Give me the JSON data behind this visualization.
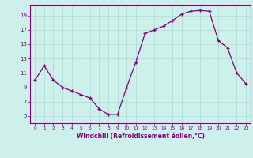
{
  "x": [
    0,
    1,
    2,
    3,
    4,
    5,
    6,
    7,
    8,
    9,
    10,
    11,
    12,
    13,
    14,
    15,
    16,
    17,
    18,
    19,
    20,
    21,
    22,
    23
  ],
  "y": [
    10.0,
    12.0,
    10.0,
    9.0,
    8.5,
    8.0,
    7.5,
    6.0,
    5.2,
    5.2,
    9.0,
    12.5,
    16.5,
    17.0,
    17.5,
    18.3,
    19.2,
    19.6,
    19.7,
    19.6,
    15.5,
    14.5,
    11.0,
    9.5
  ],
  "xlabel": "Windchill (Refroidissement éolien,°C)",
  "xlim": [
    -0.5,
    23.5
  ],
  "ylim": [
    4.0,
    20.5
  ],
  "yticks": [
    5,
    7,
    9,
    11,
    13,
    15,
    17,
    19
  ],
  "xticks": [
    0,
    1,
    2,
    3,
    4,
    5,
    6,
    7,
    8,
    9,
    10,
    11,
    12,
    13,
    14,
    15,
    16,
    17,
    18,
    19,
    20,
    21,
    22,
    23
  ],
  "line_color": "#800080",
  "marker": "+",
  "bg_color": "#cdf0ea",
  "grid_color": "#aaddd5",
  "label_color": "#800080"
}
